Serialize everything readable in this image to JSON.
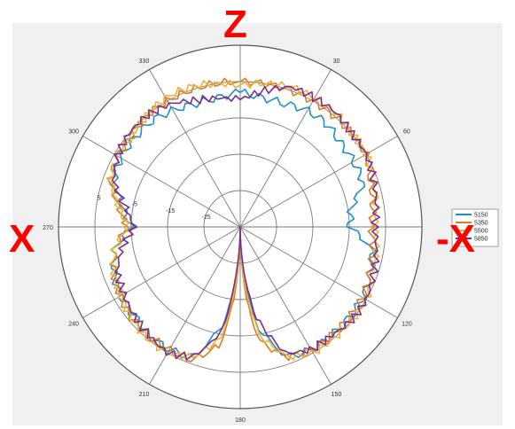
{
  "labels": {
    "top": "Z",
    "left": "X",
    "right": "-X"
  },
  "colors": {
    "background": "#f0f0f0",
    "polar_face": "#ffffff",
    "grid": "#7a7a7a",
    "label_red": "#ff0000"
  },
  "chart_data": {
    "type": "line",
    "subtype": "polar",
    "theta_direction": "clockwise",
    "theta_zero_location": "top",
    "theta_ticks": [
      0,
      30,
      60,
      90,
      120,
      150,
      180,
      210,
      240,
      270,
      300,
      330
    ],
    "theta_tick_labels": [
      "",
      "30",
      "60",
      "",
      "120",
      "150",
      "180",
      "210",
      "240",
      "270",
      "300",
      "330"
    ],
    "r_ticks": [
      -25,
      -15,
      -5,
      5
    ],
    "r_tick_labels": [
      "-25",
      "-15",
      "-5",
      "5"
    ],
    "rlim": [
      -35,
      15
    ],
    "grid": true,
    "legend": {
      "placement": "right",
      "entries": [
        "5150",
        "5350",
        "5500",
        "5850"
      ]
    },
    "angles": [
      0,
      10,
      20,
      30,
      40,
      50,
      60,
      70,
      80,
      90,
      100,
      110,
      120,
      130,
      140,
      150,
      160,
      170,
      175,
      180,
      185,
      190,
      200,
      210,
      220,
      230,
      240,
      250,
      260,
      270,
      280,
      290,
      300,
      310,
      320,
      330,
      340,
      350
    ],
    "series": [
      {
        "name": "5150",
        "color": "#1f8fc4",
        "values": [
          2,
          1,
          1,
          2,
          2,
          1,
          1,
          1,
          -4,
          -5,
          2,
          3,
          4,
          4,
          4,
          4,
          3,
          -7,
          -20,
          -35,
          -20,
          -8,
          3,
          4,
          4,
          3,
          3,
          2,
          0,
          -5,
          -2,
          2,
          3,
          3,
          3,
          2,
          1,
          1
        ]
      },
      {
        "name": "5350",
        "color": "#e07a1f",
        "values": [
          5,
          5,
          5,
          5,
          5,
          5,
          5,
          3,
          2,
          1,
          2,
          3,
          4,
          4,
          4,
          4,
          3,
          -3,
          -15,
          -35,
          -15,
          -2,
          4,
          4,
          4,
          4,
          3,
          2,
          0,
          -4,
          -1,
          3,
          4,
          4,
          5,
          5,
          5,
          5
        ]
      },
      {
        "name": "5500",
        "color": "#e8b23a",
        "values": [
          4,
          5,
          6,
          6,
          6,
          5,
          5,
          4,
          3,
          2,
          3,
          4,
          5,
          5,
          5,
          5,
          3,
          -5,
          -18,
          -35,
          -18,
          -4,
          3,
          5,
          5,
          4,
          3,
          2,
          0,
          -4,
          -1,
          3,
          4,
          4,
          5,
          6,
          6,
          5
        ]
      },
      {
        "name": "5850",
        "color": "#7b2d8e",
        "values": [
          0,
          3,
          6,
          6,
          6,
          5,
          5,
          4,
          3,
          2,
          3,
          4,
          5,
          5,
          4,
          4,
          2,
          -10,
          -22,
          -35,
          -22,
          -6,
          3,
          5,
          4,
          3,
          2,
          1,
          -2,
          -6,
          -3,
          2,
          4,
          5,
          5,
          4,
          2,
          1
        ]
      }
    ]
  }
}
